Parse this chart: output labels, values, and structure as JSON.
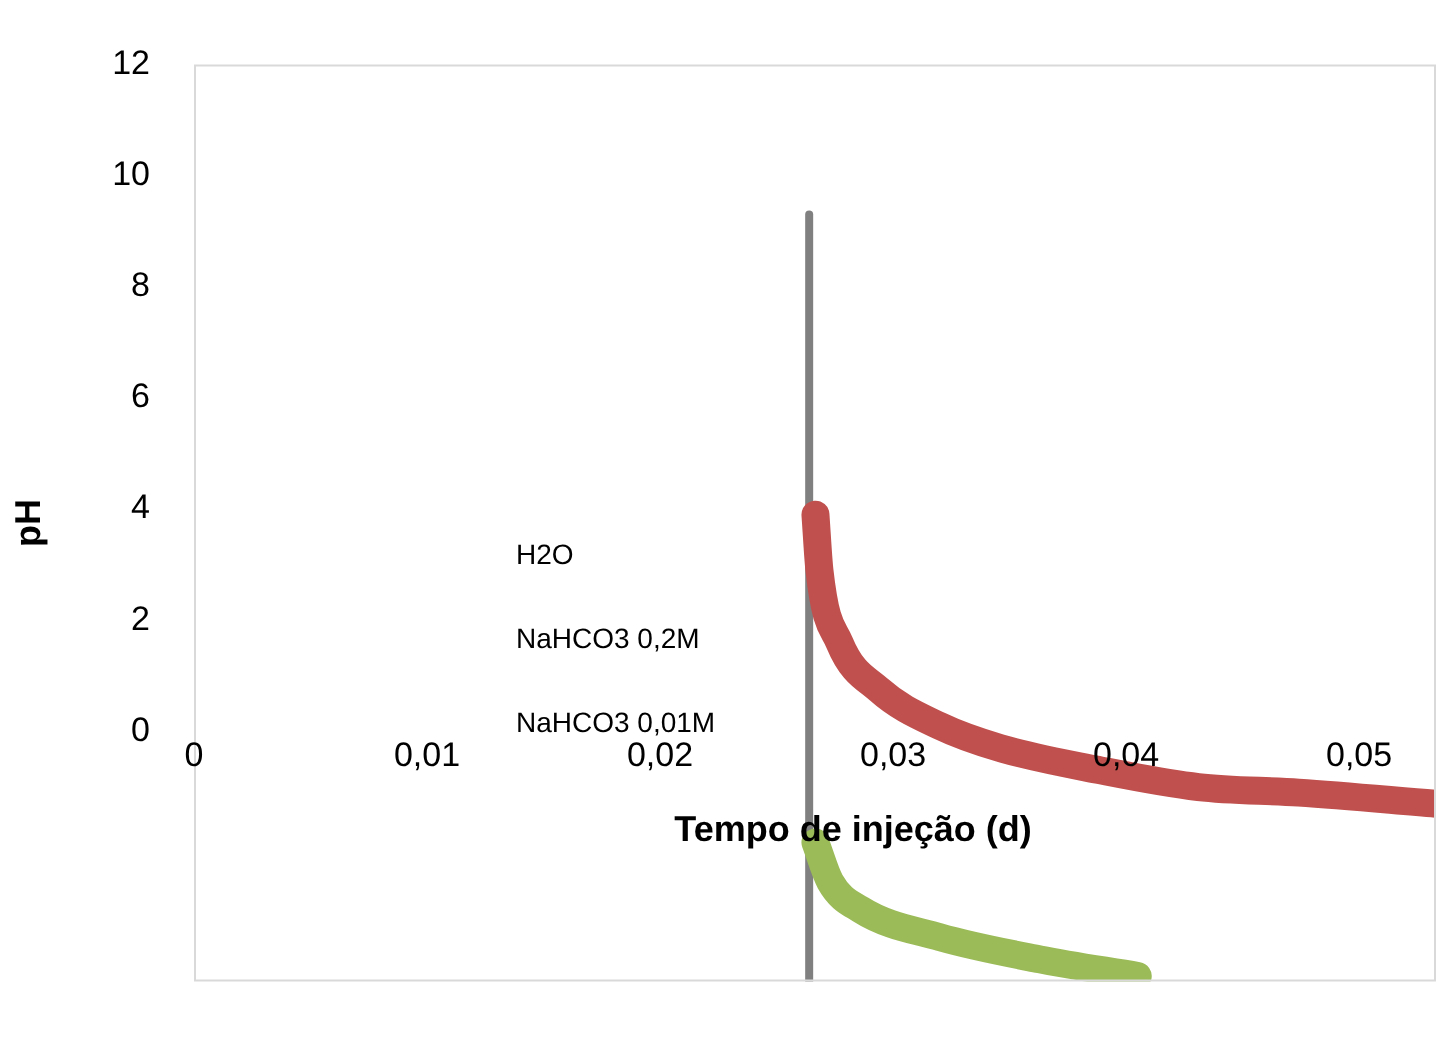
{
  "chart_data": {
    "type": "line",
    "xlabel": "Tempo de injeção (d)",
    "ylabel": "pH",
    "xlim": [
      0,
      0.0533
    ],
    "ylim": [
      -4.5,
      12
    ],
    "xticks": [
      {
        "value": 0,
        "label": "0"
      },
      {
        "value": 0.01,
        "label": "0,01"
      },
      {
        "value": 0.02,
        "label": "0,02"
      },
      {
        "value": 0.03,
        "label": "0,03"
      },
      {
        "value": 0.04,
        "label": "0,04"
      },
      {
        "value": 0.05,
        "label": "0,05"
      }
    ],
    "yticks": [
      0,
      2,
      4,
      6,
      8,
      10,
      12
    ],
    "grid": false,
    "legend": false,
    "marker": "none",
    "line_style": "solid",
    "annotations": [
      "H2O",
      "NaHCO3 0,2M",
      "NaHCO3 0,01M"
    ],
    "series": [
      {
        "color": "#c0504d",
        "x": [
          0.02667,
          0.02684,
          0.0277,
          0.0294,
          0.032,
          0.0346,
          0.0389,
          0.0431,
          0.0474,
          0.0533
        ],
        "values": [
          3.9,
          2.9,
          1.6,
          0.75,
          0.1,
          -0.3,
          -0.7,
          -1.0,
          -1.1,
          -1.3
        ]
      },
      {
        "color": "#9bbb59",
        "x": [
          0.02667,
          0.0273,
          0.0286,
          0.032,
          0.0363,
          0.0405
        ],
        "values": [
          -2.0,
          -2.7,
          -3.2,
          -3.7,
          -4.1,
          -4.4
        ]
      },
      {
        "color": "#808080",
        "x": [
          0.0264,
          0.0264
        ],
        "values": [
          9.3,
          -4.5
        ]
      }
    ]
  }
}
